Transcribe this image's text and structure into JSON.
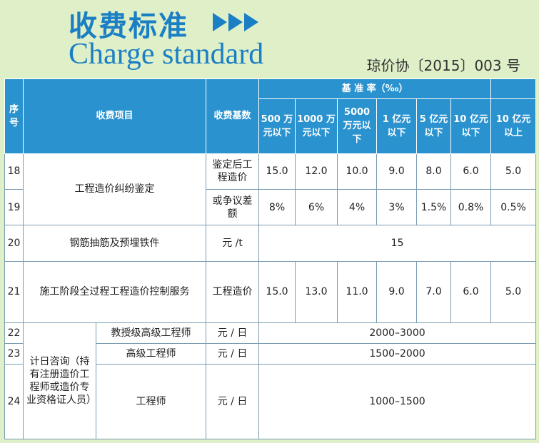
{
  "header": {
    "title_cn": "收费标准",
    "title_en": "Charge standard",
    "doc_number": "琼价协〔2015〕003 号"
  },
  "table": {
    "col_seq": "序号",
    "col_item": "收费项目",
    "col_base": "收费基数",
    "rate_header": "基 准 率（‰）",
    "rate_cols": [
      "500 万元以下",
      "1000 万元以下",
      "5000 万元以下",
      "1 亿元以下",
      "5 亿元以下",
      "10 亿元以下",
      "10 亿元以上"
    ],
    "rows": [
      {
        "no": "18",
        "base": "鉴定后工程造价",
        "rates": [
          "15.0",
          "12.0",
          "10.0",
          "9.0",
          "8.0",
          "6.0",
          "5.0"
        ]
      },
      {
        "no": "19",
        "base": "或争议差额",
        "rates": [
          "8%",
          "6%",
          "4%",
          "3%",
          "1.5%",
          "0.8%",
          "0.5%"
        ]
      },
      {
        "no": "20",
        "base": "元 /t",
        "merged": "15"
      },
      {
        "no": "21",
        "base": "工程造价",
        "rates": [
          "15.0",
          "13.0",
          "11.0",
          "9.0",
          "7.0",
          "6.0",
          "5.0"
        ]
      },
      {
        "no": "22",
        "sub": "教授级高级工程师",
        "base": "元 / 日",
        "merged": "2000–3000"
      },
      {
        "no": "23",
        "sub": "高级工程师",
        "base": "元 / 日",
        "merged": "1500–2000"
      },
      {
        "no": "24",
        "sub": "工程师",
        "base": "元 / 日",
        "merged": "1000–1500"
      }
    ],
    "item_18_19": "工程造价纠纷鉴定",
    "item_20": "钢筋抽筋及预埋铁件",
    "item_21": "施工阶段全过程工程造价控制服务",
    "item_22_24": "计日咨询（持有注册造价工程师或造价专业资格证人员）"
  },
  "colors": {
    "accent": "#1a7fc4",
    "header_bg": "#2a93cf",
    "page_bg": "#dff0c9"
  }
}
